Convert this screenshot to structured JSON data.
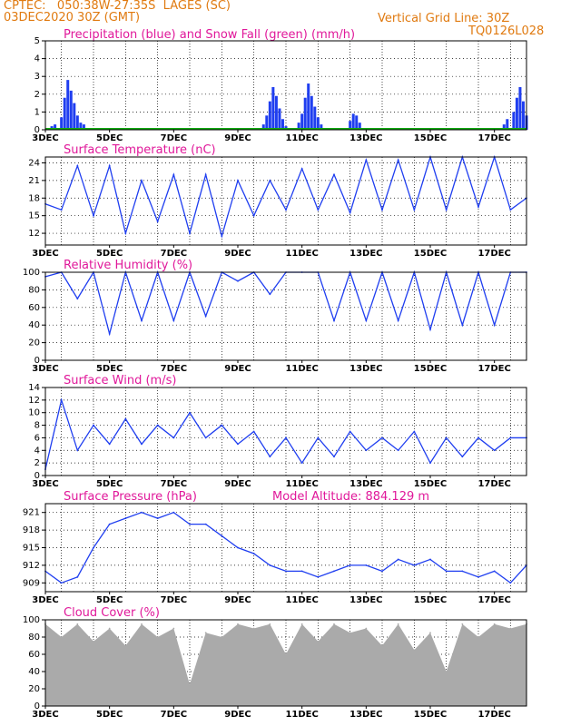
{
  "header": {
    "line1": "CPTEC:   050:38W-27:35S  LAGES (SC)",
    "line2": "03DEC2020 30Z (GMT)",
    "grid_note": "Vertical Grid Line: 30Z",
    "code": "TQ0126L028"
  },
  "x_ticks": [
    "3DEC",
    "5DEC",
    "7DEC",
    "9DEC",
    "11DEC",
    "13DEC",
    "15DEC",
    "17DEC"
  ],
  "colors": {
    "blue": "#1f3ef0",
    "green": "#11aa11",
    "gray": "#aaaaaa",
    "title": "#e0189a",
    "header": "#e07a10"
  },
  "chart_data": [
    {
      "type": "bar",
      "title": "Precipitation (blue) and Snow Fall (green) (mm/h)",
      "ylim": [
        0,
        5
      ],
      "yticks": [
        "0",
        "1",
        "2",
        "3",
        "4",
        "5"
      ],
      "series": [
        {
          "name": "Precipitation",
          "x": [
            0.2,
            0.3,
            0.5,
            0.6,
            0.7,
            0.8,
            0.9,
            1.0,
            1.1,
            1.2,
            1.3,
            6.8,
            6.9,
            7.0,
            7.1,
            7.2,
            7.3,
            7.4,
            7.5,
            7.9,
            8.0,
            8.1,
            8.2,
            8.3,
            8.4,
            8.5,
            8.6,
            9.5,
            9.6,
            9.7,
            9.8,
            14.3,
            14.4,
            14.6,
            14.7,
            14.8,
            14.9,
            15.0
          ],
          "values": [
            0.2,
            0.3,
            0.7,
            1.8,
            2.8,
            2.2,
            1.5,
            0.8,
            0.4,
            0.3,
            0.1,
            0.3,
            0.8,
            1.6,
            2.4,
            1.9,
            1.2,
            0.6,
            0.2,
            0.4,
            0.9,
            1.8,
            2.6,
            1.9,
            1.3,
            0.7,
            0.3,
            0.5,
            0.9,
            0.8,
            0.4,
            0.3,
            0.6,
            1.0,
            1.8,
            2.4,
            1.6,
            0.8
          ]
        },
        {
          "name": "Snow Fall",
          "values": [
            0
          ]
        }
      ]
    },
    {
      "type": "line",
      "title": "Surface Temperature (nC)",
      "ylim": [
        10,
        25
      ],
      "yticks": [
        "12",
        "15",
        "18",
        "21",
        "24"
      ],
      "series": [
        {
          "name": "Temperature",
          "x": [
            0,
            0.5,
            1.0,
            1.5,
            2.0,
            2.5,
            3.0,
            3.5,
            4.0,
            4.5,
            5.0,
            5.5,
            6.0,
            6.5,
            7.0,
            7.5,
            8.0,
            8.5,
            9.0,
            9.5,
            10.0,
            10.5,
            11.0,
            11.5,
            12.0,
            12.5,
            13.0,
            13.5,
            14.0,
            14.5,
            15.0
          ],
          "values": [
            17,
            16,
            23.5,
            15,
            23.5,
            12,
            21,
            14,
            22,
            12,
            22,
            11.5,
            21,
            15,
            21,
            16,
            23,
            16,
            22,
            15.5,
            24.5,
            16,
            24.5,
            16,
            25,
            16,
            25,
            16.5,
            25,
            16,
            18
          ]
        }
      ]
    },
    {
      "type": "line",
      "title": "Relative Humidity (%)",
      "ylim": [
        0,
        100
      ],
      "yticks": [
        "0",
        "20",
        "40",
        "60",
        "80",
        "100"
      ],
      "series": [
        {
          "name": "Relative Humidity",
          "x": [
            0,
            0.5,
            1.0,
            1.5,
            2.0,
            2.5,
            3.0,
            3.5,
            4.0,
            4.5,
            5.0,
            5.5,
            6.0,
            6.5,
            7.0,
            7.5,
            8.0,
            8.5,
            9.0,
            9.5,
            10.0,
            10.5,
            11.0,
            11.5,
            12.0,
            12.5,
            13.0,
            13.5,
            14.0,
            14.5,
            15.0
          ],
          "values": [
            95,
            100,
            70,
            100,
            30,
            100,
            45,
            100,
            45,
            100,
            50,
            100,
            90,
            100,
            75,
            100,
            100,
            100,
            45,
            100,
            45,
            100,
            45,
            100,
            35,
            100,
            40,
            100,
            40,
            100,
            100
          ]
        }
      ]
    },
    {
      "type": "line",
      "title": "Surface Wind (m/s)",
      "ylim": [
        0,
        14
      ],
      "yticks": [
        "0",
        "2",
        "4",
        "6",
        "8",
        "10",
        "12",
        "14"
      ],
      "series": [
        {
          "name": "Wind Speed",
          "x": [
            0,
            0.5,
            1.0,
            1.5,
            2.0,
            2.5,
            3.0,
            3.5,
            4.0,
            4.5,
            5.0,
            5.5,
            6.0,
            6.5,
            7.0,
            7.5,
            8.0,
            8.5,
            9.0,
            9.5,
            10.0,
            10.5,
            11.0,
            11.5,
            12.0,
            12.5,
            13.0,
            13.5,
            14.0,
            14.5,
            15.0
          ],
          "values": [
            1,
            12,
            4,
            8,
            5,
            9,
            5,
            8,
            6,
            10,
            6,
            8,
            5,
            7,
            3,
            6,
            2,
            6,
            3,
            7,
            4,
            6,
            4,
            7,
            2,
            6,
            3,
            6,
            4,
            6,
            6
          ]
        }
      ]
    },
    {
      "type": "line",
      "title": "Surface Pressure (hPa)",
      "annotation": "Model Altitude: 884.129 m",
      "ylim": [
        907.5,
        922.5
      ],
      "yticks": [
        "909",
        "912",
        "915",
        "918",
        "921"
      ],
      "series": [
        {
          "name": "Pressure",
          "x": [
            0,
            0.5,
            1.0,
            1.5,
            2.0,
            2.5,
            3.0,
            3.5,
            4.0,
            4.5,
            5.0,
            5.5,
            6.0,
            6.5,
            7.0,
            7.5,
            8.0,
            8.5,
            9.0,
            9.5,
            10.0,
            10.5,
            11.0,
            11.5,
            12.0,
            12.5,
            13.0,
            13.5,
            14.0,
            14.5,
            15.0
          ],
          "values": [
            911,
            909,
            910,
            915,
            919,
            920,
            921,
            920,
            921,
            919,
            919,
            917,
            915,
            914,
            912,
            911,
            911,
            910,
            911,
            912,
            912,
            911,
            913,
            912,
            913,
            911,
            911,
            910,
            911,
            909,
            912
          ]
        }
      ]
    },
    {
      "type": "area",
      "title": "Cloud Cover (%)",
      "ylim": [
        0,
        100
      ],
      "yticks": [
        "0",
        "20",
        "40",
        "60",
        "80",
        "100"
      ],
      "series": [
        {
          "name": "Cloud Cover",
          "x": [
            0,
            0.5,
            1.0,
            1.5,
            2.0,
            2.5,
            3.0,
            3.5,
            4.0,
            4.5,
            5.0,
            5.5,
            6.0,
            6.5,
            7.0,
            7.5,
            8.0,
            8.5,
            9.0,
            9.5,
            10.0,
            10.5,
            11.0,
            11.5,
            12.0,
            12.5,
            13.0,
            13.5,
            14.0,
            14.5,
            15.0
          ],
          "values": [
            95,
            80,
            95,
            75,
            90,
            70,
            95,
            80,
            90,
            25,
            85,
            80,
            95,
            90,
            95,
            60,
            95,
            75,
            95,
            85,
            90,
            70,
            95,
            65,
            85,
            40,
            95,
            80,
            95,
            90,
            95
          ]
        }
      ]
    }
  ]
}
